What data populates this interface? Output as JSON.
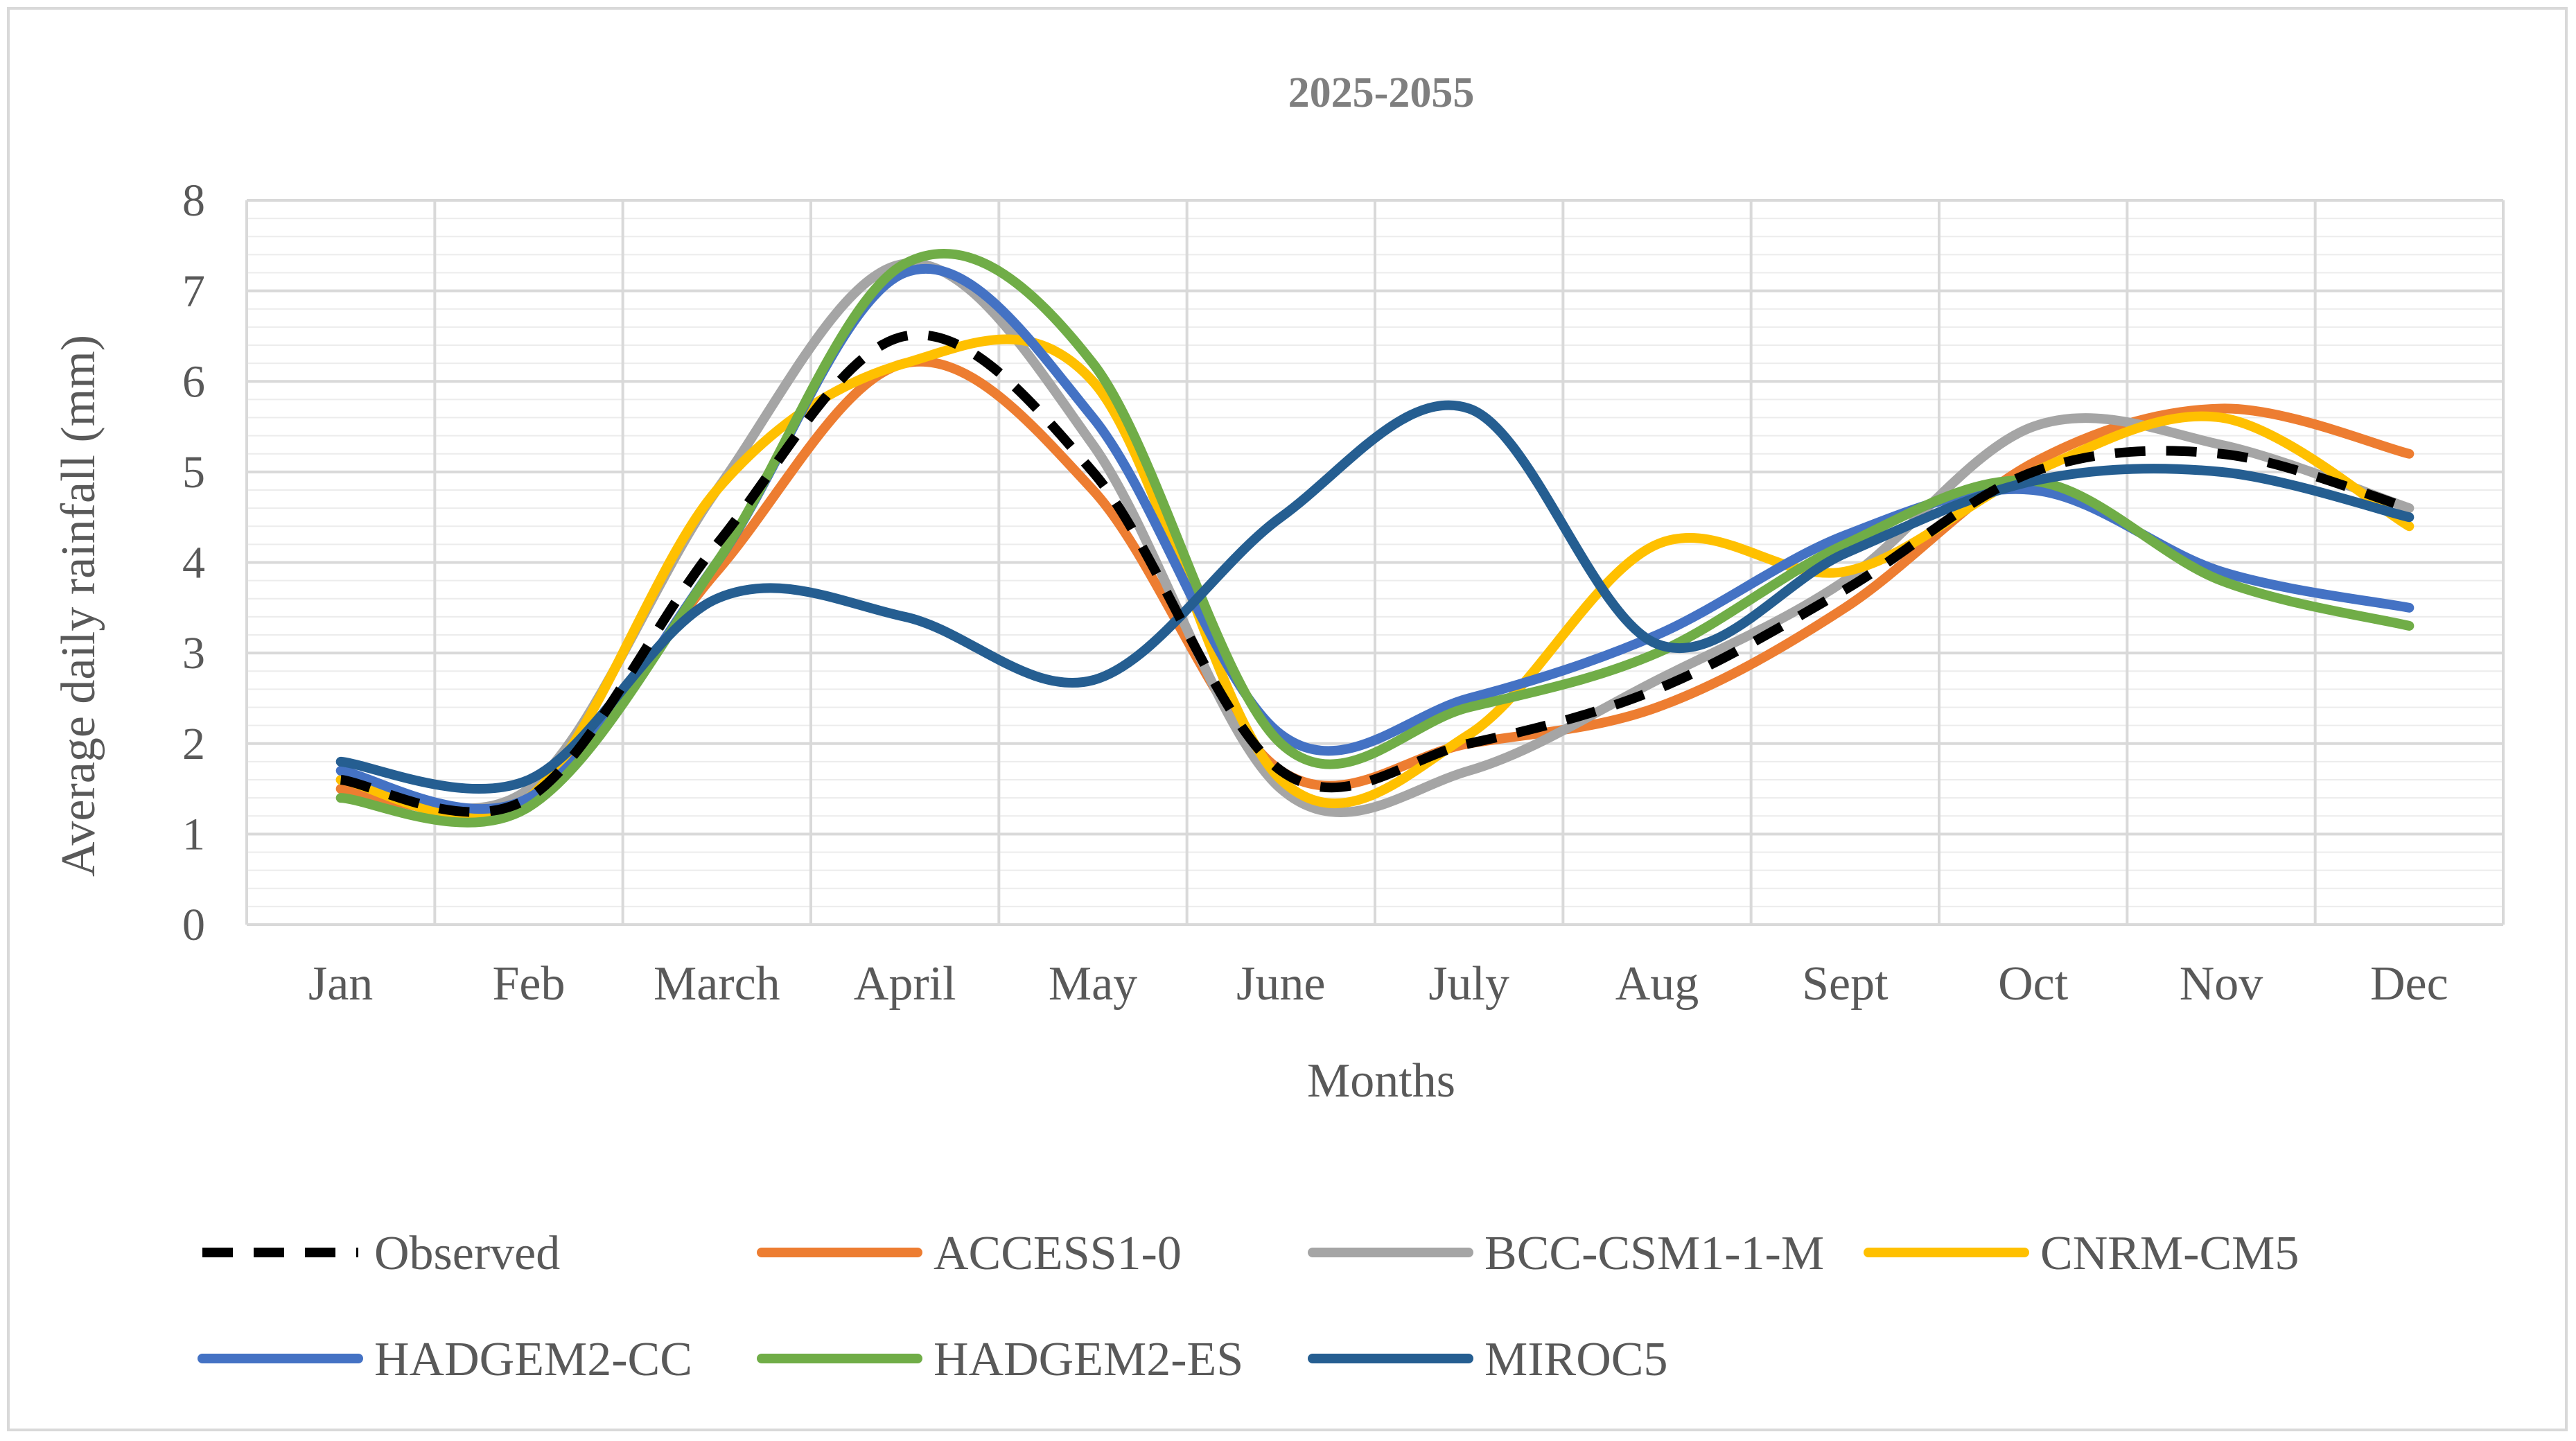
{
  "chart_data": {
    "type": "line",
    "title": "2025-2055",
    "xlabel": "Months",
    "ylabel": "Average daily rainfall (mm)",
    "ylim": [
      0,
      8
    ],
    "yticks": [
      "0",
      "1",
      "2",
      "3",
      "4",
      "5",
      "6",
      "7",
      "8"
    ],
    "grid": true,
    "legend_position": "bottom",
    "categories": [
      "Jan",
      "Feb",
      "March",
      "April",
      "May",
      "June",
      "July",
      "Aug",
      "Sept",
      "Oct",
      "Nov",
      "Dec"
    ],
    "series": [
      {
        "name": "Observed",
        "color": "#000000",
        "dashed": true,
        "values": [
          1.6,
          1.4,
          4.2,
          6.5,
          5.0,
          1.7,
          2.0,
          2.6,
          3.7,
          5.0,
          5.2,
          4.6
        ]
      },
      {
        "name": "ACCESS1-0",
        "color": "#ED7D31",
        "dashed": false,
        "values": [
          1.5,
          1.4,
          3.9,
          6.2,
          4.8,
          1.7,
          2.0,
          2.4,
          3.5,
          5.1,
          5.7,
          5.2
        ]
      },
      {
        "name": "BCC-CSM1-1-M",
        "color": "#A5A5A5",
        "dashed": false,
        "values": [
          1.6,
          1.5,
          4.8,
          7.3,
          5.3,
          1.5,
          1.7,
          2.7,
          3.8,
          5.5,
          5.3,
          4.6
        ]
      },
      {
        "name": "CNRM-CM5",
        "color": "#FFC000",
        "dashed": false,
        "values": [
          1.6,
          1.4,
          4.8,
          6.2,
          6.0,
          1.6,
          2.1,
          4.2,
          3.9,
          5.0,
          5.6,
          4.4
        ]
      },
      {
        "name": "HADGEM2-CC",
        "color": "#4472C4",
        "dashed": false,
        "values": [
          1.7,
          1.4,
          4.0,
          7.2,
          5.6,
          2.1,
          2.5,
          3.2,
          4.3,
          4.8,
          3.9,
          3.5
        ]
      },
      {
        "name": "HADGEM2-ES",
        "color": "#70AD47",
        "dashed": false,
        "values": [
          1.4,
          1.3,
          4.0,
          7.3,
          6.2,
          2.0,
          2.4,
          3.0,
          4.2,
          4.9,
          3.8,
          3.3
        ]
      },
      {
        "name": "MIROC5",
        "color": "#255E91",
        "dashed": false,
        "values": [
          1.8,
          1.6,
          3.6,
          3.4,
          2.7,
          4.5,
          5.7,
          3.1,
          4.1,
          4.9,
          5.0,
          4.5
        ]
      }
    ]
  }
}
